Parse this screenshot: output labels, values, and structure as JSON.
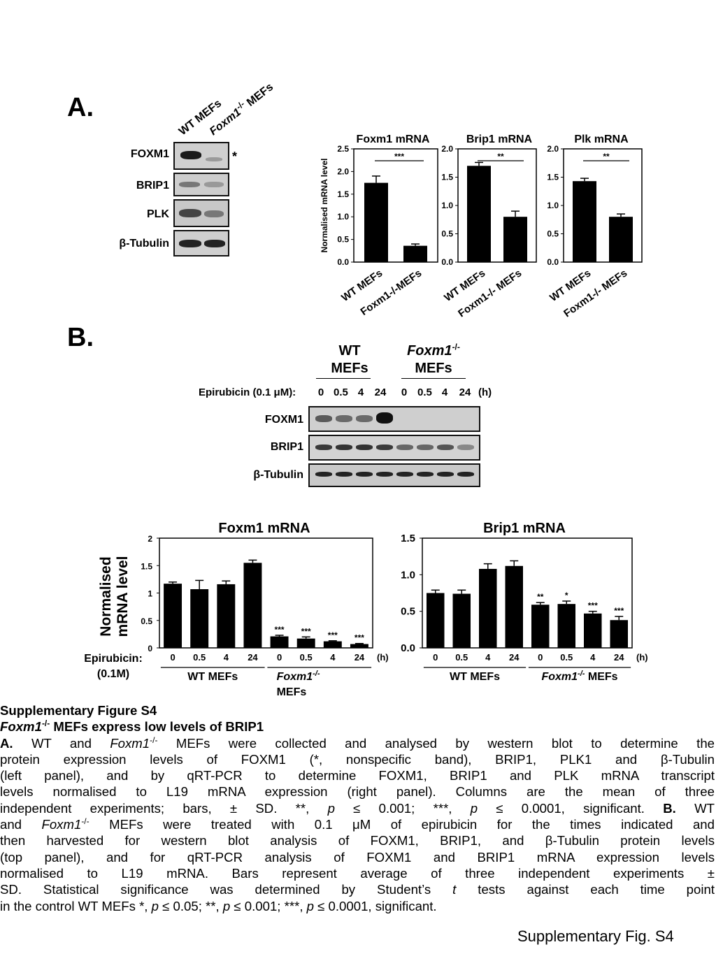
{
  "panel_a": {
    "letter": "A.",
    "lane_labels": [
      {
        "text": "WT MEFs"
      },
      {
        "main": "Foxm1",
        "sup": "-/-",
        "rest": " MEFs"
      }
    ],
    "blot_rows": [
      "FOXM1",
      "BRIP1",
      "PLK",
      "β-Tubulin"
    ],
    "nonspecific_mark": "*"
  },
  "panel_b": {
    "letter": "B.",
    "group_wt": "WT\nMEFs",
    "group_ko_main": "Foxm1",
    "group_ko_sup": "-/-",
    "group_ko_rest": "MEFs",
    "treatment_label": "Epirubicin (0.1 μM):",
    "timepoints": [
      "0",
      "0.5",
      "4",
      "24",
      "0",
      "0.5",
      "4",
      "24"
    ],
    "time_unit": "(h)",
    "blot_rows": [
      "FOXM1",
      "BRIP1",
      "β-Tubulin"
    ]
  },
  "chart_data": [
    {
      "type": "bar",
      "title": "Foxm1 mRNA",
      "ylabel": "Normalised mRNA level",
      "categories": [
        "WT MEFs",
        "Foxm1-/-MEFs"
      ],
      "values": [
        1.75,
        0.36
      ],
      "errors": [
        0.15,
        0.04
      ],
      "ylim": [
        0,
        2.5
      ],
      "yticks": [
        "0.0",
        "0.5",
        "1.0",
        "1.5",
        "2.0",
        "2.5"
      ],
      "significance": "***"
    },
    {
      "type": "bar",
      "title": "Brip1 mRNA",
      "categories": [
        "WT MEFs",
        "Foxm1-/- MEFs"
      ],
      "values": [
        1.7,
        0.8
      ],
      "errors": [
        0.06,
        0.1
      ],
      "ylim": [
        0,
        2.0
      ],
      "yticks": [
        "0.0",
        "0.5",
        "1.0",
        "1.5",
        "2.0"
      ],
      "significance": "**"
    },
    {
      "type": "bar",
      "title": "Plk mRNA",
      "categories": [
        "WT MEFs",
        "Foxm1-/- MEFs"
      ],
      "values": [
        1.43,
        0.8
      ],
      "errors": [
        0.05,
        0.05
      ],
      "ylim": [
        0,
        2.0
      ],
      "yticks": [
        "0.0",
        "0.5",
        "1.0",
        "1.5",
        "2.0"
      ],
      "significance": "**"
    },
    {
      "type": "bar",
      "title": "Foxm1 mRNA",
      "ylabel": "Normalised mRNA level",
      "xlabel": "Epirubicin: (0.1M)",
      "categories": [
        "0",
        "0.5",
        "4",
        "24",
        "0",
        "0.5",
        "4",
        "24"
      ],
      "time_unit": "(h)",
      "groups": [
        "WT MEFs",
        "Foxm1-/- MEFs"
      ],
      "values": [
        1.17,
        1.07,
        1.16,
        1.55,
        0.21,
        0.17,
        0.12,
        0.07
      ],
      "errors": [
        0.03,
        0.16,
        0.06,
        0.05,
        0.02,
        0.03,
        0.01,
        0.01
      ],
      "ylim": [
        0,
        2
      ],
      "yticks": [
        "0",
        "0.5",
        "1",
        "1.5",
        "2"
      ],
      "significance": [
        "",
        "",
        "",
        "",
        "***",
        "***",
        "***",
        "***"
      ]
    },
    {
      "type": "bar",
      "title": "Brip1 mRNA",
      "categories": [
        "0",
        "0.5",
        "4",
        "24",
        "0",
        "0.5",
        "4",
        "24"
      ],
      "time_unit": "(h)",
      "groups": [
        "WT MEFs",
        "Foxm1-/- MEFs"
      ],
      "values": [
        0.75,
        0.74,
        1.08,
        1.12,
        0.59,
        0.6,
        0.47,
        0.38
      ],
      "errors": [
        0.04,
        0.05,
        0.07,
        0.07,
        0.03,
        0.04,
        0.03,
        0.05
      ],
      "ylim": [
        0,
        1.5
      ],
      "yticks": [
        "0.0",
        "0.5",
        "1.0",
        "1.5"
      ],
      "significance": [
        "",
        "",
        "",
        "",
        "**",
        "*",
        "***",
        "***"
      ]
    }
  ],
  "caption": {
    "fig_title": "Supplementary Figure S4",
    "subtitle_gene": "Foxm1",
    "subtitle_sup": "-/-",
    "subtitle_rest": " MEFs express low levels of BRIP1",
    "para_a_1": "A.",
    "para_a_2": " WT and ",
    "para_a_gene": "Foxm1",
    "para_a_sup": "-/-",
    "para_a_3": " MEFs were collected and analysed by western blot to determine the",
    "line_2": "protein expression levels of FOXM1 (*, nonspecific band), BRIP1, PLK1 and β-Tubulin",
    "line_3": "(left panel), and by qRT-PCR to determine FOXM1, BRIP1 and PLK mRNA transcript",
    "line_4": "levels normalised to L19 mRNA expression (right panel). Columns are the mean of three",
    "line_5a": "independent experiments; bars, ± SD. **, ",
    "p1": "p",
    "line_5b": " ≤ 0.001; ***, ",
    "p2": "p",
    "line_5c": " ≤ 0.0001, significant. ",
    "line_5d": "B.",
    "line_5e": " WT",
    "line_6a": "and ",
    "line_6_gene": "Foxm1",
    "line_6_sup": "-/-",
    "line_6b": " MEFs were treated with 0.1 μM of epirubicin for the times indicated and",
    "line_7": "then harvested for western blot analysis of FOXM1, BRIP1, and β-Tubulin protein levels",
    "line_8": "(top panel), and for qRT-PCR analysis of FOXM1 and BRIP1 mRNA expression levels",
    "line_9": "normalised to L19 mRNA. Bars represent average of three independent experiments ±",
    "line_10a": "SD. Statistical significance was determined by Student’s ",
    "line_10_t": "t",
    "line_10b": " tests against each time point",
    "line_11a": "in the control WT MEFs *, ",
    "p3": "p",
    "line_11b": " ≤ 0.05; **, ",
    "p4": "p",
    "line_11c": " ≤ 0.001; ***, ",
    "p5": "p",
    "line_11d": " ≤ 0.0001, significant."
  },
  "footer": "Supplementary Fig. S4"
}
